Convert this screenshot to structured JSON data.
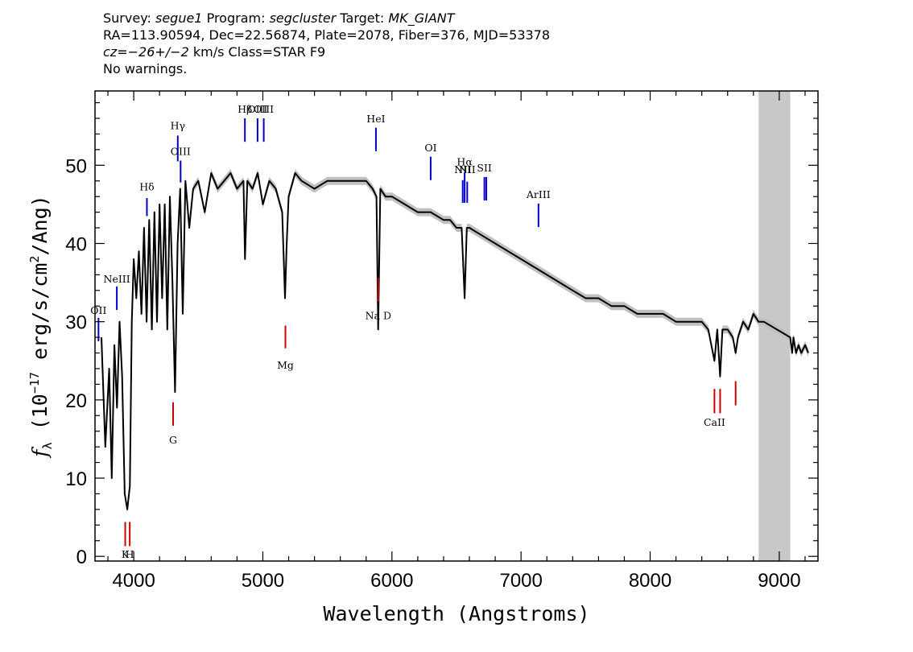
{
  "header": {
    "survey_key": "Survey:",
    "survey": "segue1",
    "program_key": "Program:",
    "program": "segcluster",
    "target_key": "Target:",
    "target": "MK_GIANT",
    "line2": "RA=113.90594, Dec=22.56874, Plate=2078, Fiber=376, MJD=53378",
    "cz_key": "cz=",
    "cz": "−26+/−2",
    "cz_rest": " km/s Class=STAR F9",
    "line4": "No warnings."
  },
  "chart_data": {
    "type": "line",
    "title": "",
    "xlabel": "Wavelength (Angstroms)",
    "ylabel_symbol": "f",
    "ylabel_sub": "λ",
    "ylabel_open": " (10",
    "ylabel_exp": "−17",
    "ylabel_mid": " erg/s/cm",
    "ylabel_exp2": "2",
    "ylabel_close": "/Ang)",
    "xlim": [
      3700,
      9300
    ],
    "ylim": [
      -0.6,
      59.5
    ],
    "xticks": [
      4000,
      5000,
      6000,
      7000,
      8000,
      9000
    ],
    "yticks": [
      0,
      10,
      20,
      30,
      40,
      50
    ],
    "x_minor_step": 200,
    "y_minor_step": 2,
    "grid": false,
    "colors": {
      "spectrum": "#000000",
      "error_band": "#c0c0c0",
      "emission_marker": "#0000cc",
      "absorption_marker": "#cc0000",
      "masked_region": "#c8c8c8"
    },
    "masked_region": [
      8840,
      9085
    ],
    "series": [
      {
        "x": [
          3750,
          3780,
          3810,
          3830,
          3850,
          3870,
          3890,
          3910,
          3930,
          3950,
          3970,
          3985,
          4000,
          4020,
          4040,
          4060,
          4080,
          4100,
          4120,
          4140,
          4160,
          4180,
          4200,
          4220,
          4240,
          4260,
          4280,
          4300,
          4320,
          4340,
          4360,
          4380,
          4400,
          4430,
          4460,
          4500,
          4550,
          4600,
          4650,
          4700,
          4750,
          4800,
          4850,
          4862,
          4880,
          4920,
          4960,
          5000,
          5050,
          5100,
          5150,
          5172,
          5185,
          5200,
          5250,
          5300,
          5400,
          5500,
          5600,
          5700,
          5800,
          5850,
          5880,
          5893,
          5910,
          5950,
          6000,
          6100,
          6200,
          6300,
          6400,
          6450,
          6500,
          6540,
          6563,
          6580,
          6600,
          6700,
          6800,
          6900,
          7000,
          7100,
          7200,
          7300,
          7400,
          7500,
          7600,
          7700,
          7800,
          7900,
          8000,
          8100,
          8200,
          8300,
          8400,
          8450,
          8498,
          8520,
          8542,
          8560,
          8600,
          8640,
          8662,
          8680,
          8720,
          8760,
          8800,
          8840,
          8880,
          9085,
          9100,
          9110,
          9130,
          9150,
          9170,
          9200,
          9225
        ],
        "y": [
          28,
          14,
          24,
          10,
          27,
          19,
          30,
          23,
          8,
          6,
          9,
          30,
          38,
          33,
          39,
          31,
          42,
          30,
          43,
          29,
          44,
          30,
          45,
          33,
          45,
          29,
          46,
          35,
          21,
          40,
          47,
          31,
          48,
          42,
          47,
          48,
          44,
          49,
          47,
          48,
          49,
          47,
          48,
          38,
          48,
          47,
          49,
          45,
          48,
          47,
          44,
          33,
          40,
          46,
          49,
          48,
          47,
          48,
          48,
          48,
          48,
          47,
          46,
          29,
          47,
          46,
          46,
          45,
          44,
          44,
          43,
          43,
          42,
          42,
          33,
          42,
          42,
          41,
          40,
          39,
          38,
          37,
          36,
          35,
          34,
          33,
          33,
          32,
          32,
          31,
          31,
          31,
          30,
          30,
          30,
          29,
          25,
          29,
          23,
          29,
          29,
          28,
          26,
          28,
          30,
          29,
          31,
          30,
          30,
          28,
          26,
          28,
          26,
          27,
          26,
          27,
          26
        ]
      }
    ],
    "emission_lines": [
      {
        "label": "NeIII",
        "x": 3869,
        "y0": 31.5,
        "y1": 34.5,
        "label_y": 35.0
      },
      {
        "label": "OII",
        "x": 3727,
        "y0": 27.5,
        "y1": 30.5,
        "label_y": 31.0
      },
      {
        "label": "Hδ",
        "x": 4102,
        "y0": 43.5,
        "y1": 45.8,
        "label_y": 46.8
      },
      {
        "label": "Hγ",
        "x": 4341,
        "y0": 50.5,
        "y1": 53.8,
        "label_y": 54.6
      },
      {
        "label": "OIII",
        "x": 4363,
        "y0": 47.8,
        "y1": 50.6,
        "label_y": 51.3
      },
      {
        "label": "Hβ",
        "x": 4861,
        "y0": 53.0,
        "y1": 56.0,
        "label_y": 56.7
      },
      {
        "label": "OIII",
        "x": 4959,
        "y0": 53.0,
        "y1": 56.0,
        "label_y": 56.7
      },
      {
        "label": "OIII",
        "x": 5007,
        "y0": 53.0,
        "y1": 56.0,
        "label_y": 56.7
      },
      {
        "label": "HeI",
        "x": 5876,
        "y0": 51.8,
        "y1": 54.8,
        "label_y": 55.5
      },
      {
        "label": "OI",
        "x": 6300,
        "y0": 48.1,
        "y1": 51.1,
        "label_y": 51.8
      },
      {
        "label": "NII",
        "x": 6548,
        "y0": 45.2,
        "y1": 48.1,
        "label_y": 49.0
      },
      {
        "label": "Hα",
        "x": 6563,
        "y0": 45.2,
        "y1": 49.1,
        "label_y": 50.0
      },
      {
        "label": "NII",
        "x": 6583,
        "y0": 45.2,
        "y1": 47.9,
        "label_y": 49.0
      },
      {
        "label": "SII",
        "x": 6716,
        "y0": 45.5,
        "y1": 48.5,
        "label_y": 49.2
      },
      {
        "label": "SII",
        "x": 6731,
        "y0": 45.5,
        "y1": 48.5,
        "label_y": null
      },
      {
        "label": "ArIII",
        "x": 7135,
        "y0": 42.1,
        "y1": 45.1,
        "label_y": 45.8
      }
    ],
    "absorption_lines": [
      {
        "label": "K",
        "x": 3934,
        "y0": 1.3,
        "y1": 4.4,
        "label_y": -0.2
      },
      {
        "label": "H",
        "x": 3969,
        "y0": 1.3,
        "y1": 4.4,
        "label_y": -0.2
      },
      {
        "label": "G",
        "x": 4305,
        "y0": 16.7,
        "y1": 19.7,
        "label_y": 14.4
      },
      {
        "label": "Mg",
        "x": 5175,
        "y0": 26.6,
        "y1": 29.5,
        "label_y": 24.0
      },
      {
        "label": "Na D",
        "x": 5894,
        "y0": 32.6,
        "y1": 35.6,
        "label_y": 30.3
      },
      {
        "label": "CaII",
        "x": 8498,
        "y0": 18.3,
        "y1": 21.4,
        "label_y": 16.7
      },
      {
        "label": "CaII",
        "x": 8542,
        "y0": 18.3,
        "y1": 21.4,
        "label_y": null
      },
      {
        "label": "CaII",
        "x": 8662,
        "y0": 19.3,
        "y1": 22.4,
        "label_y": null
      }
    ]
  }
}
